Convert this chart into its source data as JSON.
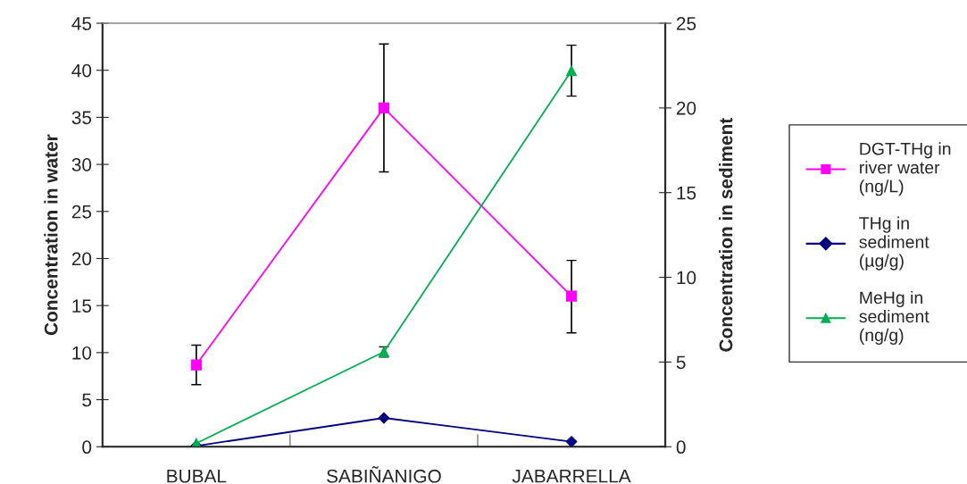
{
  "chart_data": {
    "type": "line",
    "categories": [
      "BUBAL",
      "SABIÑANIGO",
      "JABARRELLA"
    ],
    "ylabel": "Concentration in water",
    "y2label": "Concentration in sediment",
    "ylim": [
      0,
      45
    ],
    "yticks": [
      0,
      5,
      10,
      15,
      20,
      25,
      30,
      35,
      40,
      45
    ],
    "y2lim": [
      0,
      25
    ],
    "y2ticks": [
      0,
      5,
      10,
      15,
      20,
      25
    ],
    "series": [
      {
        "name": "DGT-THg in river water (ng/L)",
        "color": "#ff00ff",
        "marker": "square",
        "values": [
          8.7,
          36.0,
          16.0
        ],
        "errors": [
          [
            6.6,
            10.8
          ],
          [
            29.2,
            42.8
          ],
          [
            12.1,
            19.8
          ]
        ]
      },
      {
        "name": "THg in sediment (µg/g)",
        "color": "#000080",
        "marker": "diamond",
        "axis": "y2",
        "values": [
          0.05,
          1.7,
          0.3
        ]
      },
      {
        "name": "MeHg in sediment (ng/g)",
        "color": "#00b050",
        "marker": "triangle",
        "axis": "y2",
        "values": [
          0.2,
          5.6,
          22.2
        ],
        "errors": [
          null,
          [
            5.3,
            5.9
          ],
          [
            20.7,
            23.7
          ]
        ]
      }
    ],
    "legend": "right",
    "grid": false
  }
}
